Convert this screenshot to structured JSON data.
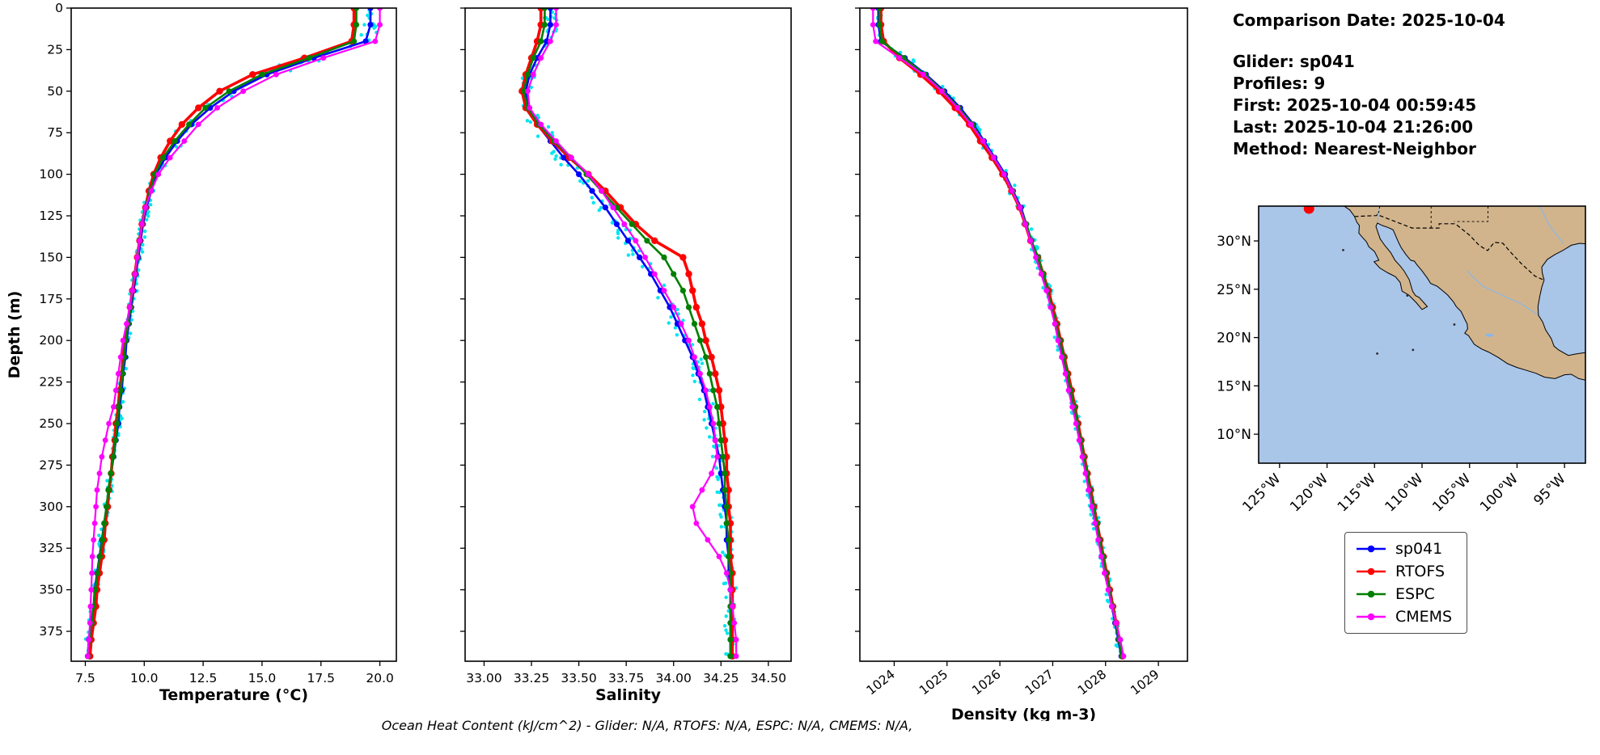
{
  "info_panel": {
    "comparison_date": "Comparison Date: 2025-10-04",
    "lines": [
      "Glider: sp041",
      "Profiles: 9",
      "First: 2025-10-04 00:59:45",
      "Last: 2025-10-04 21:26:00",
      "Method: Nearest-Neighbor"
    ]
  },
  "caption": "Ocean Heat Content (kJ/cm^2) - Glider: N/A,  RTOFS: N/A,  ESPC: N/A,  CMEMS: N/A,",
  "legend": {
    "entries": [
      {
        "label": "sp041",
        "color": "#0000ff"
      },
      {
        "label": "RTOFS",
        "color": "#ff0000"
      },
      {
        "label": "ESPC",
        "color": "#008000"
      },
      {
        "label": "CMEMS",
        "color": "#ff00ff"
      }
    ]
  },
  "map": {
    "land_color": "#d2b48c",
    "ocean_color": "#a9c5e8",
    "river_color": "#8ab6e6",
    "marker": {
      "color": "#ff0000",
      "lon": -121.9,
      "lat": 33.35
    },
    "lat_ticks": [
      {
        "label": "30°N",
        "value": 30
      },
      {
        "label": "25°N",
        "value": 25
      },
      {
        "label": "20°N",
        "value": 20
      },
      {
        "label": "15°N",
        "value": 15
      },
      {
        "label": "10°N",
        "value": 10
      }
    ],
    "lon_ticks": [
      {
        "label": "125°W",
        "value": -125
      },
      {
        "label": "120°W",
        "value": -120
      },
      {
        "label": "115°W",
        "value": -115
      },
      {
        "label": "110°W",
        "value": -110
      },
      {
        "label": "105°W",
        "value": -105
      },
      {
        "label": "100°W",
        "value": -100
      },
      {
        "label": "95°W",
        "value": -95
      }
    ]
  },
  "chart_data": [
    {
      "type": "line",
      "xlabel": "Temperature (°C)",
      "ylabel": "Depth (m)",
      "xlim": [
        6.9,
        20.7
      ],
      "depth_max": 393,
      "xtick_values": [
        7.5,
        10.0,
        12.5,
        15.0,
        17.5,
        20.0
      ],
      "xtick_labels": [
        "7.5",
        "10.0",
        "12.5",
        "15.0",
        "17.5",
        "20.0"
      ],
      "xtick_rotate": false,
      "ytick_values": [
        0,
        25,
        50,
        75,
        100,
        125,
        150,
        175,
        200,
        225,
        250,
        275,
        300,
        325,
        350,
        375
      ],
      "show_depth_labels": true,
      "raw_scatter": {
        "color": "#00e5ee",
        "base": 0.1,
        "k": 0.55,
        "cap": 0.55
      },
      "depths": [
        0,
        10,
        20,
        30,
        40,
        50,
        60,
        70,
        80,
        90,
        100,
        110,
        120,
        130,
        140,
        150,
        160,
        170,
        180,
        190,
        200,
        210,
        220,
        230,
        240,
        250,
        260,
        270,
        280,
        290,
        300,
        310,
        320,
        330,
        340,
        350,
        360,
        370,
        380,
        390
      ],
      "series": [
        {
          "name": "sp041",
          "color": "#0000ff",
          "lw": 2.6,
          "mr": 3.6,
          "values": [
            19.6,
            19.6,
            19.4,
            17.2,
            15.2,
            13.8,
            12.8,
            12.0,
            11.4,
            10.9,
            10.5,
            10.3,
            10.1,
            9.95,
            9.85,
            9.75,
            9.65,
            9.55,
            9.45,
            9.35,
            9.25,
            9.2,
            9.1,
            9.05,
            8.95,
            8.9,
            8.8,
            8.7,
            8.6,
            8.5,
            8.4,
            8.3,
            8.2,
            8.1,
            8.0,
            7.9,
            7.85,
            7.75,
            7.65,
            7.6
          ]
        },
        {
          "name": "RTOFS",
          "color": "#ff0000",
          "lw": 3.6,
          "mr": 4.2,
          "values": [
            18.9,
            18.9,
            18.8,
            16.8,
            14.6,
            13.2,
            12.3,
            11.6,
            11.1,
            10.7,
            10.4,
            10.2,
            10.05,
            9.9,
            9.8,
            9.7,
            9.6,
            9.5,
            9.4,
            9.3,
            9.2,
            9.1,
            9.05,
            8.95,
            8.9,
            8.8,
            8.75,
            8.65,
            8.6,
            8.5,
            8.45,
            8.35,
            8.3,
            8.2,
            8.1,
            8.0,
            7.95,
            7.85,
            7.75,
            7.7
          ]
        },
        {
          "name": "ESPC",
          "color": "#008000",
          "lw": 2.6,
          "mr": 3.6,
          "values": [
            19.0,
            19.0,
            18.9,
            17.0,
            15.0,
            13.6,
            12.6,
            11.9,
            11.3,
            10.8,
            10.45,
            10.25,
            10.05,
            9.9,
            9.8,
            9.72,
            9.6,
            9.5,
            9.42,
            9.32,
            9.22,
            9.15,
            9.08,
            9.0,
            8.92,
            8.85,
            8.78,
            8.68,
            8.58,
            8.48,
            8.4,
            8.3,
            8.22,
            8.12,
            8.02,
            7.92,
            7.85,
            7.78,
            7.68,
            7.62
          ]
        },
        {
          "name": "CMEMS",
          "color": "#ff00ff",
          "lw": 2.2,
          "mr": 3.4,
          "values": [
            20.0,
            20.0,
            19.8,
            17.6,
            15.6,
            14.2,
            13.1,
            12.3,
            11.7,
            11.1,
            10.6,
            10.3,
            10.05,
            9.9,
            9.8,
            9.7,
            9.6,
            9.5,
            9.38,
            9.25,
            9.1,
            9.0,
            8.9,
            8.8,
            8.7,
            8.5,
            8.35,
            8.2,
            8.1,
            8.0,
            7.95,
            7.9,
            7.85,
            7.8,
            7.78,
            7.75,
            7.72,
            7.7,
            7.65,
            7.6
          ]
        }
      ]
    },
    {
      "type": "line",
      "xlabel": "Salinity",
      "ylabel": "Depth (m)",
      "xlim": [
        32.9,
        34.62
      ],
      "depth_max": 393,
      "xtick_values": [
        33.0,
        33.25,
        33.5,
        33.75,
        34.0,
        34.25,
        34.5
      ],
      "xtick_labels": [
        "33.00",
        "33.25",
        "33.50",
        "33.75",
        "34.00",
        "34.25",
        "34.50"
      ],
      "xtick_rotate": false,
      "ytick_values": [
        0,
        25,
        50,
        75,
        100,
        125,
        150,
        175,
        200,
        225,
        250,
        275,
        300,
        325,
        350,
        375
      ],
      "show_depth_labels": false,
      "raw_scatter": {
        "color": "#00e5ee",
        "base": 0.03,
        "k": 0.35,
        "cap": 0.1
      },
      "depths": [
        0,
        10,
        20,
        30,
        40,
        50,
        60,
        70,
        80,
        90,
        100,
        110,
        120,
        130,
        140,
        150,
        160,
        170,
        180,
        190,
        200,
        210,
        220,
        230,
        240,
        250,
        260,
        270,
        280,
        290,
        300,
        310,
        320,
        330,
        340,
        350,
        360,
        370,
        380,
        390
      ],
      "series": [
        {
          "name": "sp041",
          "color": "#0000ff",
          "lw": 2.6,
          "mr": 3.6,
          "values": [
            33.35,
            33.35,
            33.33,
            33.28,
            33.24,
            33.22,
            33.23,
            33.28,
            33.35,
            33.42,
            33.5,
            33.57,
            33.64,
            33.7,
            33.76,
            33.82,
            33.88,
            33.93,
            33.98,
            34.02,
            34.06,
            34.1,
            34.13,
            34.16,
            34.18,
            34.2,
            34.22,
            34.24,
            34.25,
            34.26,
            34.27,
            34.28,
            34.28,
            34.29,
            34.29,
            34.3,
            34.3,
            34.3,
            34.3,
            34.3
          ]
        },
        {
          "name": "RTOFS",
          "color": "#ff0000",
          "lw": 3.6,
          "mr": 4.2,
          "values": [
            33.3,
            33.3,
            33.28,
            33.25,
            33.22,
            33.2,
            33.22,
            33.28,
            33.36,
            33.45,
            33.55,
            33.64,
            33.72,
            33.8,
            33.9,
            34.05,
            34.08,
            34.1,
            34.12,
            34.15,
            34.17,
            34.2,
            34.22,
            34.24,
            34.25,
            34.26,
            34.27,
            34.28,
            34.28,
            34.29,
            34.29,
            34.3,
            34.3,
            34.3,
            34.31,
            34.31,
            34.31,
            34.31,
            34.31,
            34.31
          ]
        },
        {
          "name": "ESPC",
          "color": "#008000",
          "lw": 2.6,
          "mr": 3.6,
          "values": [
            33.32,
            33.32,
            33.3,
            33.26,
            33.23,
            33.21,
            33.23,
            33.29,
            33.37,
            33.46,
            33.54,
            33.62,
            33.7,
            33.78,
            33.86,
            33.95,
            34.0,
            34.05,
            34.08,
            34.11,
            34.14,
            34.17,
            34.19,
            34.21,
            34.23,
            34.24,
            34.25,
            34.26,
            34.27,
            34.27,
            34.28,
            34.28,
            34.29,
            34.29,
            34.3,
            34.3,
            34.3,
            34.3,
            34.3,
            34.3
          ]
        },
        {
          "name": "CMEMS",
          "color": "#ff00ff",
          "lw": 2.2,
          "mr": 3.4,
          "values": [
            33.38,
            33.38,
            33.35,
            33.3,
            33.26,
            33.23,
            33.24,
            33.3,
            33.38,
            33.46,
            33.55,
            33.62,
            33.68,
            33.74,
            33.8,
            33.85,
            33.9,
            33.95,
            34.0,
            34.04,
            34.08,
            34.11,
            34.14,
            34.17,
            34.19,
            34.21,
            34.22,
            34.23,
            34.2,
            34.15,
            34.1,
            34.12,
            34.18,
            34.24,
            34.28,
            34.3,
            34.31,
            34.32,
            34.33,
            34.33
          ]
        }
      ]
    },
    {
      "type": "line",
      "xlabel": "Density (kg m-3)",
      "ylabel": "Depth (m)",
      "xlim": [
        1023.35,
        1029.55
      ],
      "depth_max": 393,
      "xtick_values": [
        1024,
        1025,
        1026,
        1027,
        1028,
        1029
      ],
      "xtick_labels": [
        "1024",
        "1025",
        "1026",
        "1027",
        "1028",
        "1029"
      ],
      "xtick_rotate": true,
      "ytick_values": [
        0,
        25,
        50,
        75,
        100,
        125,
        150,
        175,
        200,
        225,
        250,
        275,
        300,
        325,
        350,
        375
      ],
      "show_depth_labels": false,
      "raw_scatter": {
        "color": "#00e5ee",
        "base": 0.05,
        "k": 0.3,
        "cap": 0.18
      },
      "depths": [
        0,
        10,
        20,
        30,
        40,
        50,
        60,
        70,
        80,
        90,
        100,
        110,
        120,
        130,
        140,
        150,
        160,
        170,
        180,
        190,
        200,
        210,
        220,
        230,
        240,
        250,
        260,
        270,
        280,
        290,
        300,
        310,
        320,
        330,
        340,
        350,
        360,
        370,
        380,
        390
      ],
      "series": [
        {
          "name": "sp041",
          "color": "#0000ff",
          "lw": 2.6,
          "mr": 3.6,
          "values": [
            1023.7,
            1023.7,
            1023.75,
            1024.2,
            1024.6,
            1024.95,
            1025.25,
            1025.5,
            1025.7,
            1025.9,
            1026.1,
            1026.25,
            1026.4,
            1026.5,
            1026.6,
            1026.7,
            1026.8,
            1026.9,
            1026.98,
            1027.05,
            1027.12,
            1027.2,
            1027.27,
            1027.33,
            1027.4,
            1027.46,
            1027.52,
            1027.58,
            1027.64,
            1027.7,
            1027.76,
            1027.82,
            1027.88,
            1027.94,
            1028.0,
            1028.06,
            1028.12,
            1028.18,
            1028.24,
            1028.3
          ]
        },
        {
          "name": "RTOFS",
          "color": "#ff0000",
          "lw": 3.6,
          "mr": 4.2,
          "values": [
            1023.75,
            1023.75,
            1023.8,
            1024.1,
            1024.5,
            1024.85,
            1025.15,
            1025.42,
            1025.63,
            1025.85,
            1026.05,
            1026.22,
            1026.37,
            1026.48,
            1026.58,
            1026.72,
            1026.82,
            1026.92,
            1027.0,
            1027.08,
            1027.15,
            1027.22,
            1027.29,
            1027.36,
            1027.42,
            1027.48,
            1027.54,
            1027.6,
            1027.66,
            1027.72,
            1027.78,
            1027.84,
            1027.9,
            1027.96,
            1028.02,
            1028.08,
            1028.14,
            1028.2,
            1028.26,
            1028.32
          ]
        },
        {
          "name": "ESPC",
          "color": "#008000",
          "lw": 2.6,
          "mr": 3.6,
          "values": [
            1023.72,
            1023.72,
            1023.77,
            1024.18,
            1024.58,
            1024.92,
            1025.22,
            1025.48,
            1025.68,
            1025.88,
            1026.08,
            1026.24,
            1026.38,
            1026.5,
            1026.6,
            1026.72,
            1026.82,
            1026.9,
            1026.98,
            1027.06,
            1027.14,
            1027.21,
            1027.28,
            1027.34,
            1027.41,
            1027.47,
            1027.53,
            1027.59,
            1027.65,
            1027.71,
            1027.77,
            1027.83,
            1027.89,
            1027.95,
            1028.01,
            1028.07,
            1028.13,
            1028.19,
            1028.25,
            1028.31
          ]
        },
        {
          "name": "CMEMS",
          "color": "#ff00ff",
          "lw": 2.2,
          "mr": 3.4,
          "values": [
            1023.6,
            1023.6,
            1023.65,
            1024.1,
            1024.55,
            1024.9,
            1025.2,
            1025.45,
            1025.68,
            1025.88,
            1026.08,
            1026.23,
            1026.38,
            1026.48,
            1026.58,
            1026.68,
            1026.78,
            1026.88,
            1026.96,
            1027.04,
            1027.1,
            1027.17,
            1027.24,
            1027.3,
            1027.37,
            1027.44,
            1027.5,
            1027.56,
            1027.62,
            1027.68,
            1027.74,
            1027.8,
            1027.86,
            1027.92,
            1027.98,
            1028.05,
            1028.12,
            1028.2,
            1028.28,
            1028.34
          ]
        }
      ]
    }
  ]
}
